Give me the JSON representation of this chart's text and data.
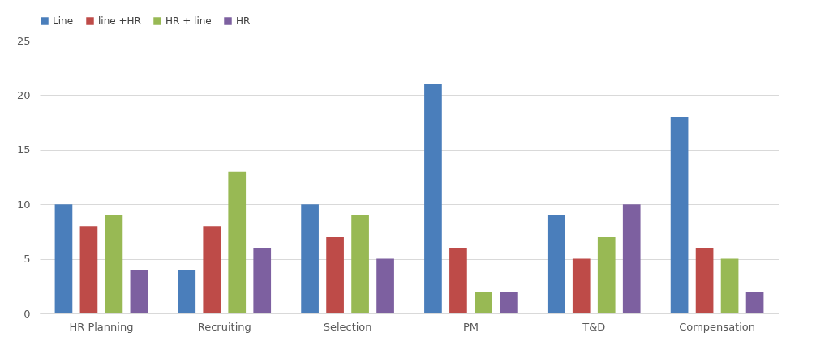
{
  "chart_data": {
    "type": "bar",
    "categories": [
      "HR Planning",
      "Recruiting",
      "Selection",
      "PM",
      "T&D",
      "Compensation"
    ],
    "series": [
      {
        "name": "Line",
        "color": "#4a7ebb",
        "values": [
          10,
          4,
          10,
          21,
          9,
          18
        ]
      },
      {
        "name": "line +HR",
        "color": "#be4b48",
        "values": [
          8,
          8,
          7,
          6,
          5,
          6
        ]
      },
      {
        "name": "HR + line",
        "color": "#98b954",
        "values": [
          9,
          13,
          9,
          2,
          7,
          5
        ]
      },
      {
        "name": "HR",
        "color": "#7d60a0",
        "values": [
          4,
          6,
          5,
          2,
          10,
          2
        ]
      }
    ],
    "ylim": [
      0,
      25
    ],
    "yticks": [
      0,
      5,
      10,
      15,
      20,
      25
    ],
    "grid": "y",
    "legend": "top"
  }
}
